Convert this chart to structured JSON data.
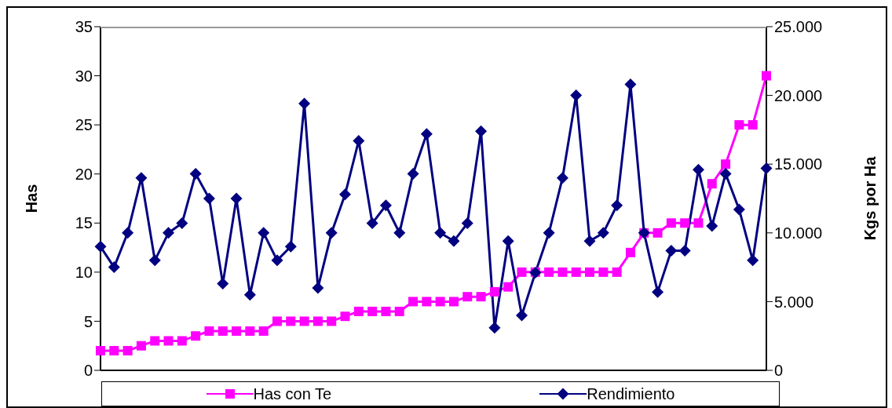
{
  "chart_data": {
    "type": "line",
    "categories": [
      null,
      null,
      null,
      null,
      null,
      null,
      null,
      null,
      null,
      null,
      null,
      null,
      null,
      null,
      null,
      null,
      null,
      null,
      null,
      null,
      null,
      null,
      null,
      null,
      null,
      null,
      null,
      null,
      null,
      null,
      null,
      null,
      null,
      null,
      null,
      null,
      null,
      null,
      null,
      null,
      null,
      null,
      null,
      null,
      null,
      null,
      null,
      null,
      null,
      null
    ],
    "ylabel": "Has",
    "y2label": "Kgs por Ha",
    "ylim": [
      0,
      35
    ],
    "yticks": [
      0,
      5,
      10,
      15,
      20,
      25,
      30,
      35
    ],
    "y2lim": [
      0,
      25000
    ],
    "y2ticks": [
      {
        "value": 0,
        "label": "0"
      },
      {
        "value": 5000,
        "label": "5.000"
      },
      {
        "value": 10000,
        "label": "10.000"
      },
      {
        "value": 15000,
        "label": "15.000"
      },
      {
        "value": 20000,
        "label": "20.000"
      },
      {
        "value": 25000,
        "label": "25.000"
      }
    ],
    "legend": "bottom",
    "tick_labels": "y",
    "series": [
      {
        "name": "Has con Te",
        "color": "#ff00ff",
        "marker": "square",
        "values": [
          2,
          2,
          2,
          2.5,
          3,
          3,
          3,
          3.5,
          4,
          4,
          4,
          4,
          4,
          5,
          5,
          5,
          5,
          5,
          5.5,
          6,
          6,
          6,
          6,
          7,
          7,
          7,
          7,
          7.5,
          7.5,
          8,
          8.5,
          10,
          10,
          10,
          10,
          10,
          10,
          10,
          10,
          12,
          14,
          14,
          15,
          15,
          15,
          19,
          21,
          25,
          25,
          30
        ]
      },
      {
        "name": "Rendimiento",
        "color": "#000080",
        "marker": "diamond",
        "axis": "y2",
        "values": [
          9000,
          7500,
          10000,
          14000,
          8000,
          10000,
          10700,
          14300,
          12500,
          6300,
          12500,
          5500,
          10000,
          8000,
          9000,
          19400,
          6000,
          10000,
          12800,
          16700,
          10700,
          12000,
          10000,
          14300,
          17200,
          10000,
          9400,
          10700,
          17400,
          3100,
          9400,
          4000,
          7100,
          10000,
          14000,
          20000,
          9400,
          10000,
          12000,
          20800,
          10000,
          5700,
          8700,
          8700,
          14600,
          10500,
          14300,
          11700,
          8000,
          14700
        ]
      }
    ]
  }
}
